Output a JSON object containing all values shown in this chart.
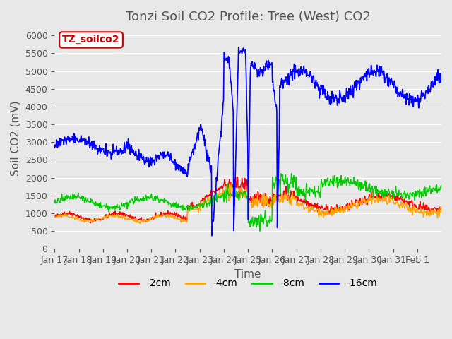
{
  "title": "Tonzi Soil CO2 Profile: Tree (West) CO2",
  "ylabel": "Soil CO2 (mV)",
  "xlabel": "Time",
  "ylim": [
    0,
    6200
  ],
  "yticks": [
    0,
    500,
    1000,
    1500,
    2000,
    2500,
    3000,
    3500,
    4000,
    4500,
    5000,
    5500,
    6000
  ],
  "bg_color": "#e8e8e8",
  "legend_label": "TZ_soilco2",
  "line_colors": {
    "-2cm": "#ff0000",
    "-4cm": "#ffa500",
    "-8cm": "#00cc00",
    "-16cm": "#0000ff"
  },
  "x_tick_labels": [
    "Jan 17",
    "Jan 18",
    "Jan 19",
    "Jan 20",
    "Jan 21",
    "Jan 22",
    "Jan 23",
    "Jan 24",
    "Jan 25",
    "Jan 26",
    "Jan 27",
    "Jan 28",
    "Jan 29",
    "Jan 30",
    "Jan 31",
    "Feb 1"
  ],
  "title_fontsize": 13,
  "axis_fontsize": 11
}
